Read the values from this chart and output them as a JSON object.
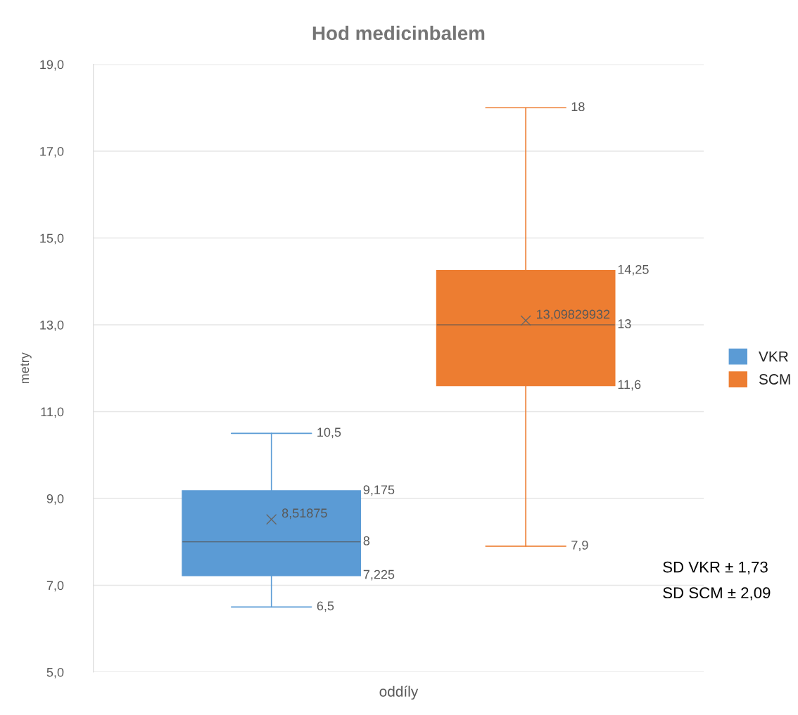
{
  "chart_data": {
    "type": "box",
    "title": "Hod medicinbalem",
    "ylabel": "metry",
    "categories": [
      "oddíly"
    ],
    "series": [
      {
        "name": "VKR",
        "color": "#5b9bd5",
        "boxes": [
          {
            "low": 6.5,
            "q1": 7.225,
            "median": 8,
            "q3": 9.175,
            "high": 10.5,
            "mean": 8.51875
          }
        ],
        "value_labels": [
          [
            "6,5",
            "7,225",
            "8",
            "9,175",
            "10,5",
            "8,51875"
          ]
        ]
      },
      {
        "name": "SCM",
        "color": "#ed7d31",
        "boxes": [
          {
            "low": 7.9,
            "q1": 11.6,
            "median": 13,
            "q3": 14.25,
            "high": 18,
            "mean": 13.09829932
          }
        ],
        "value_labels": [
          [
            "7,9",
            "11,6",
            "13",
            "14,25",
            "18",
            "13,09829932"
          ]
        ]
      }
    ],
    "ylim": [
      5,
      19
    ],
    "yticks": [
      {
        "value": 5,
        "label": "5,0"
      },
      {
        "value": 7,
        "label": "7,0"
      },
      {
        "value": 9,
        "label": "9,0"
      },
      {
        "value": 11,
        "label": "11,0"
      },
      {
        "value": 13,
        "label": "13,0"
      },
      {
        "value": 15,
        "label": "15,0"
      },
      {
        "value": 17,
        "label": "17,0"
      },
      {
        "value": 19,
        "label": "19,0"
      }
    ],
    "grid": "y",
    "legend": "right",
    "marker": "cross",
    "annotations": [
      "SD VKR ± 1,73",
      "SD SCM ± 2,09"
    ]
  }
}
